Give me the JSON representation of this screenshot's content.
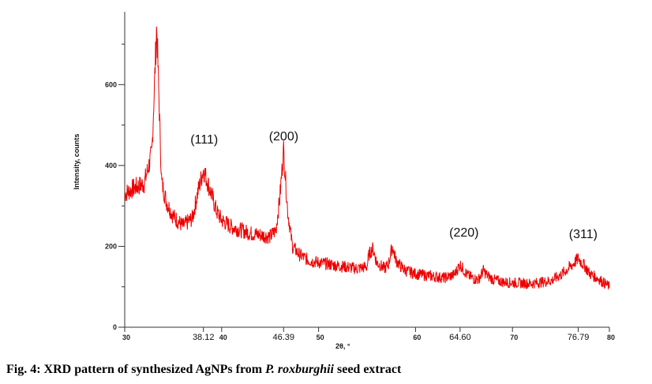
{
  "chart_data": {
    "type": "line",
    "xlabel": "2θ, °",
    "ylabel": "Intensity, counts",
    "xlim": [
      30,
      80
    ],
    "ylim": [
      0,
      780
    ],
    "x_ticks": [
      30,
      40,
      50,
      60,
      70,
      80
    ],
    "x_tick_labels": [
      "30",
      "40",
      "50",
      "60",
      "70",
      "80"
    ],
    "y_ticks": [
      0,
      200,
      400,
      600
    ],
    "y_tick_labels": [
      "0",
      "200",
      "400",
      "600"
    ],
    "series": [
      {
        "color": "#ee0000",
        "x": [
          30,
          31,
          32,
          32.8,
          33.3,
          33.8,
          34.3,
          35,
          36,
          37,
          37.5,
          38.12,
          38.8,
          39.5,
          40,
          41,
          42,
          43,
          44,
          45,
          45.6,
          46.0,
          46.39,
          46.8,
          47.3,
          48,
          49,
          50,
          52,
          54,
          55,
          55.2,
          55.6,
          56,
          56.8,
          57.2,
          57.6,
          58,
          58.5,
          59,
          60,
          62,
          63,
          64,
          64.6,
          65.3,
          66,
          66.5,
          67.0,
          67.4,
          68,
          69,
          70,
          72,
          74,
          75,
          76,
          76.79,
          77.5,
          78,
          79,
          80
        ],
        "y": [
          330,
          345,
          355,
          430,
          745,
          360,
          310,
          275,
          250,
          270,
          330,
          390,
          340,
          285,
          265,
          248,
          240,
          232,
          228,
          224,
          240,
          320,
          440,
          290,
          200,
          180,
          165,
          160,
          152,
          145,
          150,
          180,
          195,
          160,
          145,
          155,
          200,
          165,
          150,
          140,
          132,
          125,
          122,
          130,
          155,
          130,
          120,
          118,
          140,
          128,
          118,
          112,
          110,
          108,
          115,
          130,
          150,
          170,
          150,
          132,
          118,
          100
        ]
      }
    ],
    "peak_annotations": [
      {
        "label": "(111)",
        "x": 38.12,
        "y": 390,
        "position": "38.12"
      },
      {
        "label": "(200)",
        "x": 46.39,
        "y": 440,
        "position": "46.39"
      },
      {
        "label": "(220)",
        "x": 64.6,
        "y": 155,
        "position": "64.60"
      },
      {
        "label": "(311)",
        "x": 76.79,
        "y": 170,
        "position": "76.79"
      }
    ],
    "grid": false
  },
  "caption": {
    "prefix": "Fig. 4: XRD pattern of synthesized AgNPs from ",
    "species": "P. roxburghii",
    "suffix": " seed extract"
  }
}
